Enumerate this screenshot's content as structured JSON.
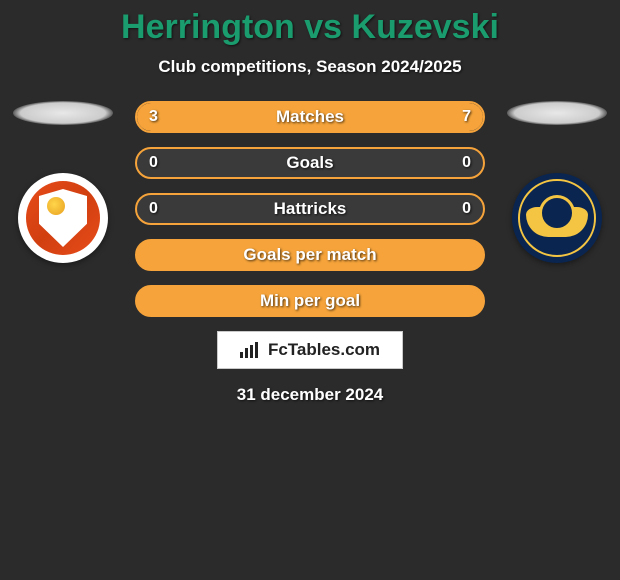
{
  "title": "Herrington vs Kuzevski",
  "subtitle": "Club competitions, Season 2024/2025",
  "date": "31 december 2024",
  "watermark": "FcTables.com",
  "colors": {
    "title": "#1a9c6e",
    "bar_border": "#f5a33a",
    "bar_fill": "#f5a33a",
    "bar_bg": "#3a3a3a",
    "page_bg": "#2b2b2b",
    "text": "#ffffff"
  },
  "bars": [
    {
      "label": "Matches",
      "left": "3",
      "right": "7",
      "left_pct": 30,
      "right_pct": 70,
      "show_values": true,
      "fill": "split"
    },
    {
      "label": "Goals",
      "left": "0",
      "right": "0",
      "left_pct": 0,
      "right_pct": 0,
      "show_values": true,
      "fill": "none"
    },
    {
      "label": "Hattricks",
      "left": "0",
      "right": "0",
      "left_pct": 0,
      "right_pct": 0,
      "show_values": true,
      "fill": "none"
    },
    {
      "label": "Goals per match",
      "left": "",
      "right": "",
      "left_pct": 0,
      "right_pct": 0,
      "show_values": false,
      "fill": "full"
    },
    {
      "label": "Min per goal",
      "left": "",
      "right": "",
      "left_pct": 0,
      "right_pct": 0,
      "show_values": false,
      "fill": "full"
    }
  ],
  "typography": {
    "title_fontsize": 34,
    "subtitle_fontsize": 17,
    "bar_label_fontsize": 17,
    "bar_value_fontsize": 16
  }
}
